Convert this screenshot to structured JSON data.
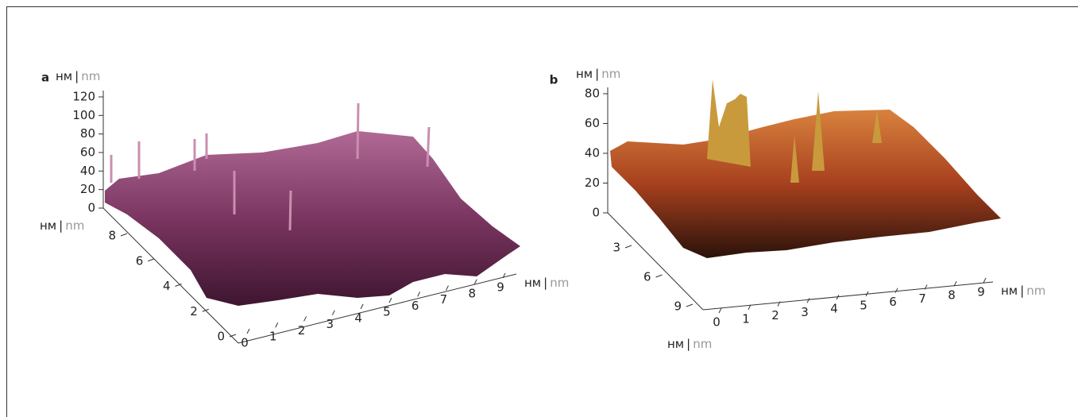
{
  "units": {
    "ru": "нм",
    "sep": "|",
    "en": "nm"
  },
  "panels": [
    {
      "label": "a",
      "z_ticks": [
        "120",
        "100",
        "80",
        "60",
        "40",
        "20",
        "0"
      ],
      "y_ticks": [
        "8",
        "6",
        "4",
        "2",
        "0"
      ],
      "x_ticks": [
        "0",
        "1",
        "2",
        "3",
        "4",
        "5",
        "6",
        "7",
        "8",
        "9"
      ]
    },
    {
      "label": "b",
      "z_ticks": [
        "80",
        "60",
        "40",
        "20",
        "0"
      ],
      "y_ticks": [
        "3",
        "6",
        "9"
      ],
      "x_ticks": [
        "0",
        "1",
        "2",
        "3",
        "4",
        "5",
        "6",
        "7",
        "8",
        "9"
      ]
    }
  ]
}
